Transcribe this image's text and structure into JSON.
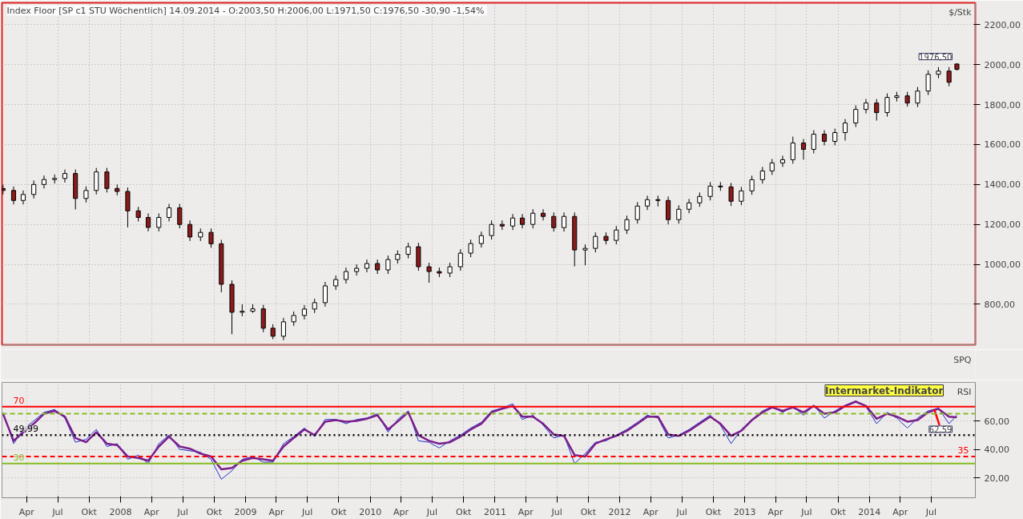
{
  "chart_data": [
    {
      "type": "candlestick",
      "title": "Index Floor [SP c1 STU  Wöchentlich] 14.09.2014 - O:2003,50 H:2006,00 L:1971,50 C:1976,50 -30,90 -1,54%",
      "ylabel": "$/Stk",
      "x": [
        "2007-01-22",
        "2007-02-22",
        "2007-03-22",
        "2007-04-22",
        "2007-05-22",
        "2007-06-22",
        "2007-07-22",
        "2007-08-22",
        "2007-09-22",
        "2007-10-22",
        "2007-11-22",
        "2007-12-22",
        "2008-01-22",
        "2008-02-22",
        "2008-03-22",
        "2008-04-22",
        "2008-05-22",
        "2008-06-22",
        "2008-07-22",
        "2008-08-22",
        "2008-09-22",
        "2008-10-22",
        "2008-11-22",
        "2008-12-22",
        "2009-01-22",
        "2009-02-22",
        "2009-03-22",
        "2009-04-22",
        "2009-05-22",
        "2009-06-22",
        "2009-07-22",
        "2009-08-22",
        "2009-09-22",
        "2009-10-22",
        "2009-11-22",
        "2009-12-22",
        "2010-01-22",
        "2010-02-22",
        "2010-03-22",
        "2010-04-22",
        "2010-05-22",
        "2010-06-22",
        "2010-07-22",
        "2010-08-22",
        "2010-09-22",
        "2010-10-22",
        "2010-11-22",
        "2010-12-22",
        "2011-01-22",
        "2011-02-22",
        "2011-03-22",
        "2011-04-22",
        "2011-05-22",
        "2011-06-22",
        "2011-07-22",
        "2011-08-22",
        "2011-09-22",
        "2011-10-22",
        "2011-11-22",
        "2011-12-22",
        "2012-01-22",
        "2012-02-22",
        "2012-03-22",
        "2012-04-22",
        "2012-05-22",
        "2012-06-22",
        "2012-07-22",
        "2012-08-22",
        "2012-09-22",
        "2012-10-22",
        "2012-11-22",
        "2012-12-22",
        "2013-01-22",
        "2013-02-22",
        "2013-03-22",
        "2013-04-22",
        "2013-05-22",
        "2013-06-22",
        "2013-07-22",
        "2013-08-22",
        "2013-09-22",
        "2013-10-22",
        "2013-11-22",
        "2013-12-22",
        "2014-01-22",
        "2014-02-22",
        "2014-03-22",
        "2014-04-22",
        "2014-05-22",
        "2014-06-22",
        "2014-07-22",
        "2014-08-22",
        "2014-09-14"
      ],
      "ohlc": [
        [
          1380,
          1400,
          1350,
          1370
        ],
        [
          1370,
          1390,
          1300,
          1320
        ],
        [
          1320,
          1370,
          1300,
          1350
        ],
        [
          1350,
          1420,
          1330,
          1400
        ],
        [
          1400,
          1445,
          1380,
          1425
        ],
        [
          1425,
          1450,
          1405,
          1430
        ],
        [
          1430,
          1475,
          1410,
          1455
        ],
        [
          1455,
          1475,
          1275,
          1330
        ],
        [
          1330,
          1390,
          1310,
          1370
        ],
        [
          1370,
          1483,
          1350,
          1463
        ],
        [
          1463,
          1483,
          1360,
          1380
        ],
        [
          1380,
          1400,
          1345,
          1365
        ],
        [
          1365,
          1385,
          1185,
          1268
        ],
        [
          1268,
          1288,
          1215,
          1235
        ],
        [
          1235,
          1255,
          1165,
          1185
        ],
        [
          1185,
          1255,
          1165,
          1235
        ],
        [
          1235,
          1303,
          1215,
          1283
        ],
        [
          1283,
          1303,
          1180,
          1200
        ],
        [
          1200,
          1220,
          1117,
          1137
        ],
        [
          1137,
          1180,
          1117,
          1160
        ],
        [
          1160,
          1180,
          1083,
          1103
        ],
        [
          1103,
          1123,
          860,
          900
        ],
        [
          900,
          920,
          650,
          760
        ],
        [
          760,
          800,
          740,
          765
        ],
        [
          765,
          800,
          757,
          777
        ],
        [
          777,
          797,
          660,
          680
        ],
        [
          680,
          700,
          625,
          640
        ],
        [
          640,
          732,
          620,
          712
        ],
        [
          712,
          764,
          692,
          744
        ],
        [
          744,
          796,
          724,
          776
        ],
        [
          776,
          828,
          756,
          808
        ],
        [
          808,
          912,
          788,
          892
        ],
        [
          892,
          944,
          872,
          924
        ],
        [
          924,
          984,
          904,
          964
        ],
        [
          964,
          1000,
          944,
          980
        ],
        [
          980,
          1024,
          960,
          1004
        ],
        [
          1004,
          1024,
          952,
          972
        ],
        [
          972,
          1044,
          952,
          1024
        ],
        [
          1024,
          1070,
          1004,
          1050
        ],
        [
          1050,
          1108,
          1030,
          1088
        ],
        [
          1088,
          1108,
          968,
          988
        ],
        [
          988,
          1008,
          908,
          964
        ],
        [
          964,
          984,
          936,
          956
        ],
        [
          956,
          1008,
          936,
          988
        ],
        [
          988,
          1076,
          968,
          1056
        ],
        [
          1056,
          1124,
          1036,
          1104
        ],
        [
          1104,
          1164,
          1084,
          1144
        ],
        [
          1144,
          1220,
          1124,
          1200
        ],
        [
          1200,
          1220,
          1172,
          1192
        ],
        [
          1192,
          1252,
          1172,
          1232
        ],
        [
          1232,
          1252,
          1180,
          1200
        ],
        [
          1200,
          1276,
          1180,
          1256
        ],
        [
          1256,
          1276,
          1220,
          1240
        ],
        [
          1240,
          1260,
          1164,
          1184
        ],
        [
          1184,
          1260,
          1164,
          1240
        ],
        [
          1240,
          1260,
          990,
          1072
        ],
        [
          1072,
          1100,
          995,
          1080
        ],
        [
          1080,
          1160,
          1060,
          1140
        ],
        [
          1140,
          1160,
          1100,
          1120
        ],
        [
          1120,
          1192,
          1100,
          1172
        ],
        [
          1172,
          1244,
          1152,
          1224
        ],
        [
          1224,
          1312,
          1204,
          1292
        ],
        [
          1292,
          1344,
          1272,
          1324
        ],
        [
          1324,
          1344,
          1290,
          1320
        ],
        [
          1320,
          1340,
          1200,
          1224
        ],
        [
          1224,
          1296,
          1204,
          1276
        ],
        [
          1276,
          1328,
          1256,
          1308
        ],
        [
          1308,
          1360,
          1288,
          1340
        ],
        [
          1340,
          1412,
          1320,
          1392
        ],
        [
          1392,
          1412,
          1368,
          1388
        ],
        [
          1388,
          1408,
          1292,
          1316
        ],
        [
          1316,
          1388,
          1296,
          1368
        ],
        [
          1368,
          1444,
          1348,
          1424
        ],
        [
          1424,
          1488,
          1404,
          1468
        ],
        [
          1468,
          1528,
          1448,
          1508
        ],
        [
          1508,
          1544,
          1488,
          1524
        ],
        [
          1524,
          1640,
          1504,
          1608
        ],
        [
          1608,
          1628,
          1524,
          1576
        ],
        [
          1576,
          1672,
          1556,
          1652
        ],
        [
          1652,
          1672,
          1596,
          1616
        ],
        [
          1616,
          1680,
          1596,
          1660
        ],
        [
          1660,
          1728,
          1620,
          1708
        ],
        [
          1708,
          1796,
          1688,
          1776
        ],
        [
          1776,
          1828,
          1756,
          1808
        ],
        [
          1808,
          1828,
          1720,
          1760
        ],
        [
          1760,
          1856,
          1740,
          1836
        ],
        [
          1836,
          1864,
          1816,
          1844
        ],
        [
          1844,
          1864,
          1790,
          1808
        ],
        [
          1808,
          1888,
          1788,
          1868
        ],
        [
          1868,
          1972,
          1848,
          1952
        ],
        [
          1952,
          1988,
          1932,
          1968
        ],
        [
          1968,
          1988,
          1892,
          1912
        ],
        [
          2003.5,
          2006,
          1971.5,
          1976.5
        ]
      ],
      "colors": [
        "#8b1a1a",
        "#8b1a1a",
        "#ffffff",
        "#ffffff",
        "#ffffff",
        "#ffffff",
        "#ffffff",
        "#8b1a1a",
        "#ffffff",
        "#ffffff",
        "#8b1a1a",
        "#8b1a1a",
        "#8b1a1a",
        "#8b1a1a",
        "#8b1a1a",
        "#ffffff",
        "#ffffff",
        "#8b1a1a",
        "#8b1a1a",
        "#ffffff",
        "#8b1a1a",
        "#8b1a1a",
        "#8b1a1a",
        "#ffffff",
        "#ffffff",
        "#8b1a1a",
        "#8b1a1a",
        "#ffffff",
        "#ffffff",
        "#ffffff",
        "#ffffff",
        "#ffffff",
        "#ffffff",
        "#ffffff",
        "#ffffff",
        "#ffffff",
        "#8b1a1a",
        "#ffffff",
        "#ffffff",
        "#ffffff",
        "#8b1a1a",
        "#8b1a1a",
        "#8b1a1a",
        "#ffffff",
        "#ffffff",
        "#ffffff",
        "#ffffff",
        "#ffffff",
        "#8b1a1a",
        "#ffffff",
        "#8b1a1a",
        "#ffffff",
        "#8b1a1a",
        "#8b1a1a",
        "#ffffff",
        "#8b1a1a",
        "#ffffff",
        "#ffffff",
        "#8b1a1a",
        "#ffffff",
        "#ffffff",
        "#ffffff",
        "#ffffff",
        "#8b1a1a",
        "#8b1a1a",
        "#ffffff",
        "#ffffff",
        "#ffffff",
        "#ffffff",
        "#8b1a1a",
        "#8b1a1a",
        "#ffffff",
        "#ffffff",
        "#ffffff",
        "#ffffff",
        "#ffffff",
        "#ffffff",
        "#8b1a1a",
        "#ffffff",
        "#8b1a1a",
        "#ffffff",
        "#ffffff",
        "#ffffff",
        "#ffffff",
        "#8b1a1a",
        "#ffffff",
        "#ffffff",
        "#8b1a1a",
        "#ffffff",
        "#ffffff",
        "#ffffff",
        "#8b1a1a",
        "#8b1a1a"
      ],
      "xlim": [
        "2007-01-19",
        "2014-11-07"
      ],
      "ylim": [
        597,
        2310
      ],
      "xticks": [
        {
          "value": "2007-04-01",
          "label": null
        },
        {
          "value": "2007-07-01",
          "label": null
        },
        {
          "value": "2007-10-01",
          "label": null
        },
        {
          "value": "2008-01-01",
          "label": null
        },
        {
          "value": "2008-04-01",
          "label": null
        },
        {
          "value": "2008-07-01",
          "label": null
        },
        {
          "value": "2008-10-01",
          "label": null
        },
        {
          "value": "2009-01-01",
          "label": null
        },
        {
          "value": "2009-04-01",
          "label": null
        },
        {
          "value": "2009-07-01",
          "label": null
        },
        {
          "value": "2009-10-01",
          "label": null
        },
        {
          "value": "2010-01-01",
          "label": null
        },
        {
          "value": "2010-04-01",
          "label": null
        },
        {
          "value": "2010-07-01",
          "label": null
        },
        {
          "value": "2010-10-01",
          "label": null
        },
        {
          "value": "2011-01-01",
          "label": null
        },
        {
          "value": "2011-04-01",
          "label": null
        },
        {
          "value": "2011-07-01",
          "label": null
        },
        {
          "value": "2011-10-01",
          "label": null
        },
        {
          "value": "2012-01-01",
          "label": null
        },
        {
          "value": "2012-04-01",
          "label": null
        },
        {
          "value": "2012-07-01",
          "label": null
        },
        {
          "value": "2012-10-01",
          "label": null
        },
        {
          "value": "2013-01-01",
          "label": null
        },
        {
          "value": "2013-04-01",
          "label": null
        },
        {
          "value": "2013-07-01",
          "label": null
        },
        {
          "value": "2013-10-01",
          "label": null
        },
        {
          "value": "2014-01-01",
          "label": null
        },
        {
          "value": "2014-04-01",
          "label": null
        },
        {
          "value": "2014-07-01",
          "label": null
        }
      ],
      "yticks": [
        {
          "value": 800,
          "label": "800,00"
        },
        {
          "value": 1000,
          "label": "1000,00"
        },
        {
          "value": 1200,
          "label": "1200,00"
        },
        {
          "value": 1400,
          "label": "1400,00"
        },
        {
          "value": 1600,
          "label": "1600,00"
        },
        {
          "value": 1800,
          "label": "1800,00"
        },
        {
          "value": 2000,
          "label": "2000,00"
        },
        {
          "value": 2200,
          "label": "2200,00"
        }
      ],
      "grid": true,
      "tick_labels": "y",
      "annotations": [
        {
          "text": "1976,50",
          "x": "2014-09-14",
          "y": 1976.5
        }
      ]
    },
    {
      "type": "other",
      "title": "SPQ"
    },
    {
      "type": "line",
      "ylabel": "RSI",
      "x": [
        "2007-01-22",
        "2007-02-22",
        "2007-03-22",
        "2007-04-22",
        "2007-05-22",
        "2007-06-22",
        "2007-07-22",
        "2007-08-22",
        "2007-09-22",
        "2007-10-22",
        "2007-11-22",
        "2007-12-22",
        "2008-01-22",
        "2008-02-22",
        "2008-03-22",
        "2008-04-22",
        "2008-05-22",
        "2008-06-22",
        "2008-07-22",
        "2008-08-22",
        "2008-09-22",
        "2008-10-22",
        "2008-11-22",
        "2008-12-22",
        "2009-01-22",
        "2009-02-22",
        "2009-03-22",
        "2009-04-22",
        "2009-05-22",
        "2009-06-22",
        "2009-07-22",
        "2009-08-22",
        "2009-09-22",
        "2009-10-22",
        "2009-11-22",
        "2009-12-22",
        "2010-01-22",
        "2010-02-22",
        "2010-03-22",
        "2010-04-22",
        "2010-05-22",
        "2010-06-22",
        "2010-07-22",
        "2010-08-22",
        "2010-09-22",
        "2010-10-22",
        "2010-11-22",
        "2010-12-22",
        "2011-01-22",
        "2011-02-22",
        "2011-03-22",
        "2011-04-22",
        "2011-05-22",
        "2011-06-22",
        "2011-07-22",
        "2011-08-22",
        "2011-09-22",
        "2011-10-22",
        "2011-11-22",
        "2011-12-22",
        "2012-01-22",
        "2012-02-22",
        "2012-03-22",
        "2012-04-22",
        "2012-05-22",
        "2012-06-22",
        "2012-07-22",
        "2012-08-22",
        "2012-09-22",
        "2012-10-22",
        "2012-11-22",
        "2012-12-22",
        "2013-01-22",
        "2013-02-22",
        "2013-03-22",
        "2013-04-22",
        "2013-05-22",
        "2013-06-22",
        "2013-07-22",
        "2013-08-22",
        "2013-09-22",
        "2013-10-22",
        "2013-11-22",
        "2013-12-22",
        "2014-01-22",
        "2014-02-22",
        "2014-03-22",
        "2014-04-22",
        "2014-05-22",
        "2014-06-22",
        "2014-07-22",
        "2014-08-22",
        "2014-09-14"
      ],
      "series": [
        {
          "color": "#2233cc",
          "values": [
            66,
            44,
            54,
            60,
            66,
            68,
            62,
            45,
            47,
            54,
            42,
            44,
            33,
            36,
            30,
            44,
            50,
            40,
            39,
            38,
            33,
            19,
            25,
            33,
            35,
            31,
            31,
            44,
            49,
            55,
            49,
            61,
            61,
            58,
            61,
            62,
            65,
            52,
            61,
            67,
            46,
            45,
            41,
            46,
            50,
            55,
            59,
            67,
            69,
            72,
            61,
            64,
            57,
            48,
            50,
            30,
            37,
            45,
            46,
            50,
            54,
            59,
            64,
            62,
            48,
            50,
            54,
            59,
            64,
            57,
            44,
            54,
            61,
            67,
            70,
            66,
            70,
            64,
            71,
            62,
            67,
            71,
            74,
            70,
            58,
            66,
            62,
            55,
            62,
            67,
            69,
            58,
            64
          ]
        },
        {
          "color": "#7b1f8c",
          "values": [
            65,
            46,
            52,
            58,
            65,
            67,
            63,
            48,
            45,
            52,
            44,
            43,
            35,
            34,
            32,
            42,
            49,
            42,
            40.5,
            37,
            35,
            26,
            27,
            32,
            34,
            33,
            32,
            42,
            48,
            54,
            50,
            59.5,
            60.5,
            59.5,
            60,
            61.5,
            64,
            54,
            59.5,
            66,
            50,
            46,
            44,
            45,
            49,
            54,
            58,
            66,
            68.5,
            70.5,
            63,
            63,
            58,
            50.5,
            49.5,
            36,
            35,
            44,
            47,
            49.5,
            53,
            58,
            63,
            63,
            50.5,
            49.5,
            53,
            58,
            63,
            58,
            49.5,
            53,
            60.5,
            66,
            69.5,
            67,
            69.5,
            66,
            70.5,
            65,
            66,
            70.5,
            73.5,
            70.5,
            61.5,
            65,
            63,
            59.5,
            60.5,
            66,
            68.5,
            63,
            62.59
          ]
        },
        {
          "color": "#ff0000",
          "x": [
            "2014-07-10",
            "2014-07-25"
          ],
          "values": [
            68,
            57
          ]
        }
      ],
      "xlim": [
        "2007-01-19",
        "2014-11-07"
      ],
      "ylim": [
        6,
        87
      ],
      "xticks": [
        {
          "value": "2007-04-01",
          "label": "Apr"
        },
        {
          "value": "2007-07-01",
          "label": "Jul"
        },
        {
          "value": "2007-10-01",
          "label": "Okt"
        },
        {
          "value": "2008-01-01",
          "label": "2008"
        },
        {
          "value": "2008-04-01",
          "label": "Apr"
        },
        {
          "value": "2008-07-01",
          "label": "Jul"
        },
        {
          "value": "2008-10-01",
          "label": "Okt"
        },
        {
          "value": "2009-01-01",
          "label": "2009"
        },
        {
          "value": "2009-04-01",
          "label": "Apr"
        },
        {
          "value": "2009-07-01",
          "label": "Jul"
        },
        {
          "value": "2009-10-01",
          "label": "Okt"
        },
        {
          "value": "2010-01-01",
          "label": "2010"
        },
        {
          "value": "2010-04-01",
          "label": "Apr"
        },
        {
          "value": "2010-07-01",
          "label": "Jul"
        },
        {
          "value": "2010-10-01",
          "label": "Okt"
        },
        {
          "value": "2011-01-01",
          "label": "2011"
        },
        {
          "value": "2011-04-01",
          "label": "Apr"
        },
        {
          "value": "2011-07-01",
          "label": "Jul"
        },
        {
          "value": "2011-10-01",
          "label": "Okt"
        },
        {
          "value": "2012-01-01",
          "label": "2012"
        },
        {
          "value": "2012-04-01",
          "label": "Apr"
        },
        {
          "value": "2012-07-01",
          "label": "Jul"
        },
        {
          "value": "2012-10-01",
          "label": "Okt"
        },
        {
          "value": "2013-01-01",
          "label": "2013"
        },
        {
          "value": "2013-04-01",
          "label": "Apr"
        },
        {
          "value": "2013-07-01",
          "label": "Jul"
        },
        {
          "value": "2013-10-01",
          "label": "Okt"
        },
        {
          "value": "2014-01-01",
          "label": "2014"
        },
        {
          "value": "2014-04-01",
          "label": "Apr"
        },
        {
          "value": "2014-07-01",
          "label": "Jul"
        }
      ],
      "yticks": [
        {
          "value": 20,
          "label": "20,00"
        },
        {
          "value": 40,
          "label": "40,00"
        },
        {
          "value": 60,
          "label": "60,00"
        }
      ],
      "grid": true,
      "ref_lines": [
        {
          "axis": "y",
          "value": 70,
          "label": "70",
          "color": "#ff0000",
          "line_style": "solid"
        },
        {
          "axis": "y",
          "value": 65,
          "label": null,
          "color": "#88bb22",
          "line_style": "dashed"
        },
        {
          "axis": "y",
          "value": 49.99,
          "label": "49,99",
          "color": "#000000",
          "line_style": "dotted"
        },
        {
          "axis": "y",
          "value": 35,
          "label": "35",
          "color": "#ff0000",
          "line_style": "dashed"
        },
        {
          "axis": "y",
          "value": 30,
          "label": "30",
          "color": "#88bb22",
          "line_style": "solid"
        }
      ],
      "annotations": [
        "Intermarket-Indikator",
        {
          "text": "62,59",
          "x": "2014-09-14",
          "y": 62.59
        }
      ]
    }
  ]
}
